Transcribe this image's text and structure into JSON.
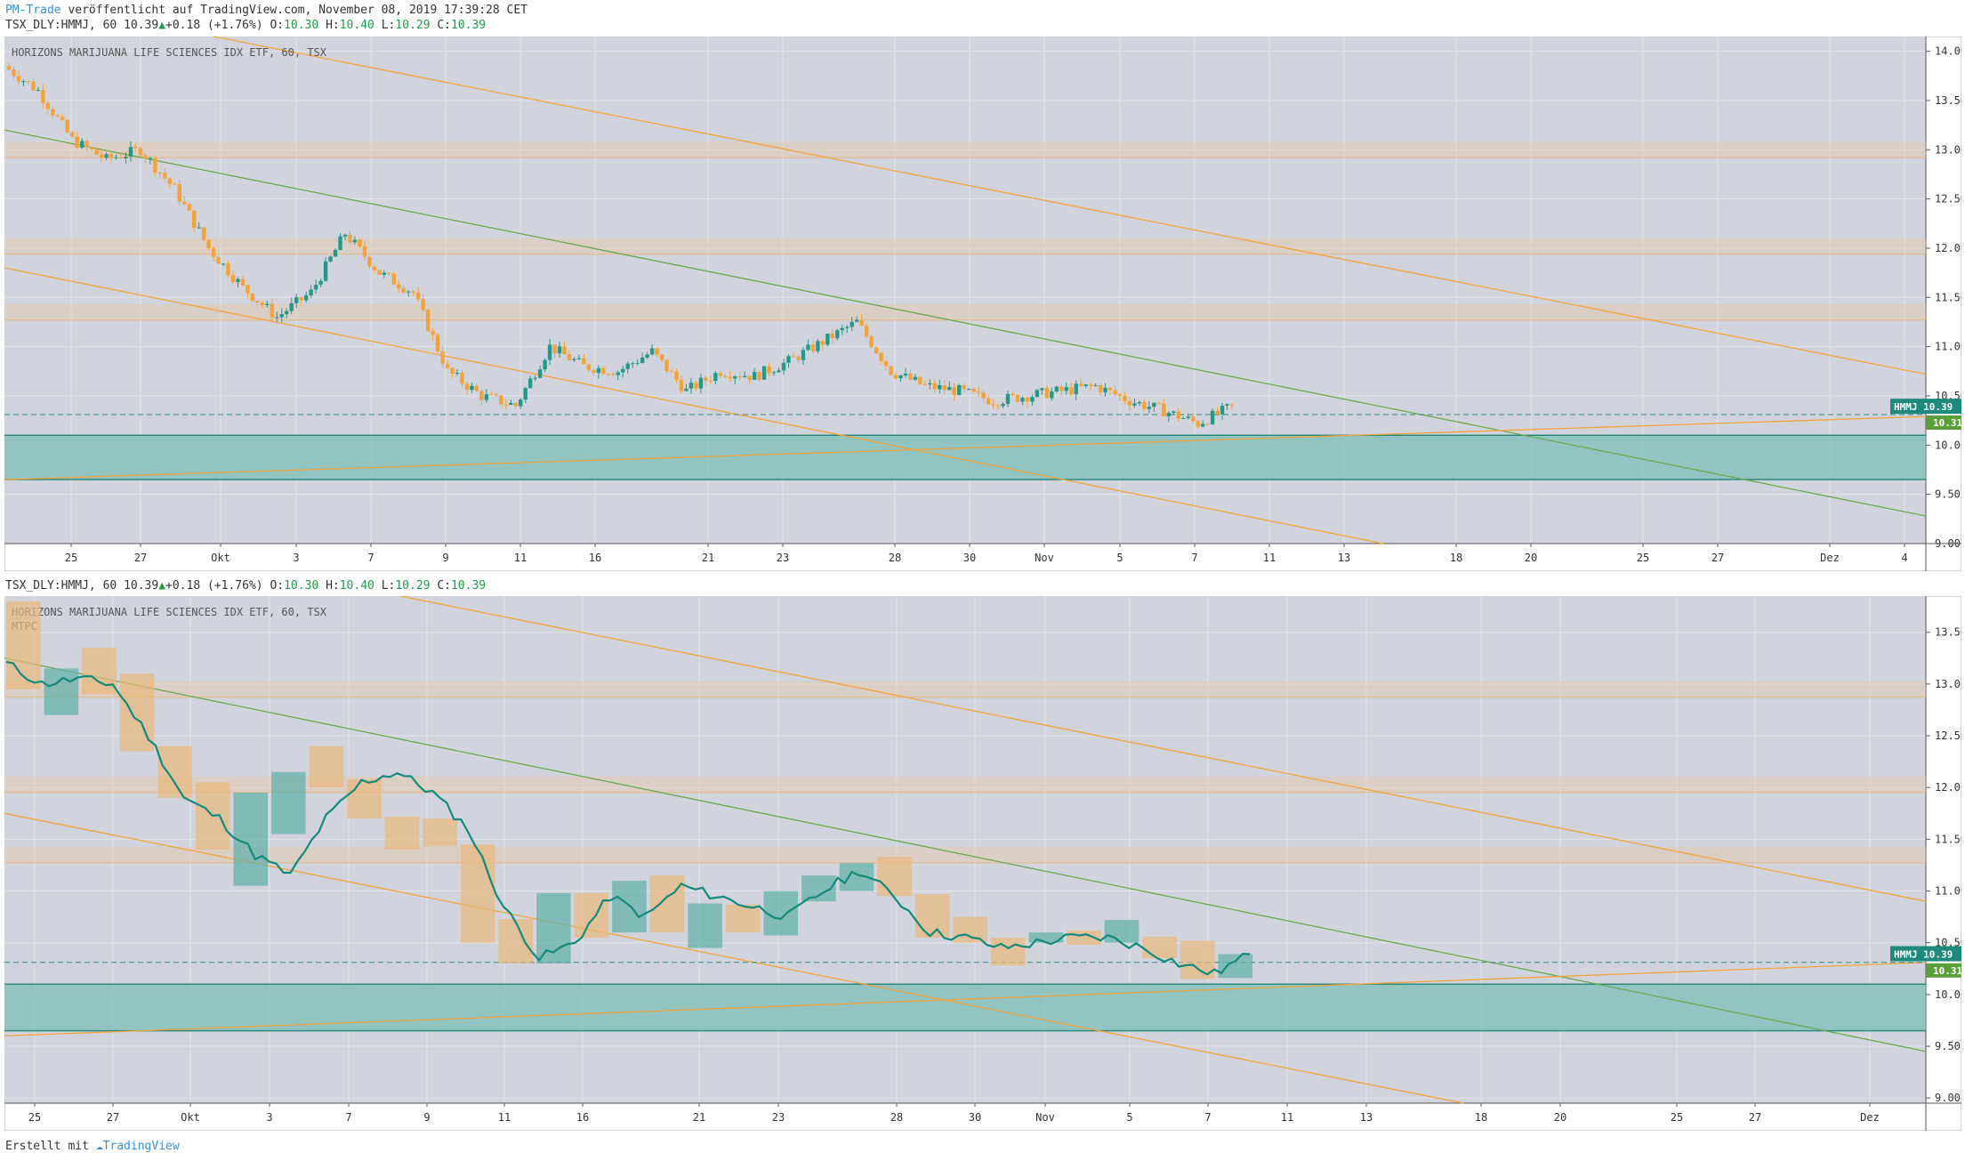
{
  "header": {
    "publisher": "PM-Trade",
    "published_text": "veröffentlicht auf TradingView.com, November 08, 2019 17:39:28 CET"
  },
  "ohlc_line": {
    "symbol": "TSX_DLY:HMMJ, 60",
    "last": "10.39",
    "change": "+0.18 (+1.76%)",
    "o_label": "O:",
    "o": "10.30",
    "h_label": "H:",
    "h": "10.40",
    "l_label": "L:",
    "l": "10.29",
    "c_label": "C:",
    "c": "10.39"
  },
  "panels": [
    {
      "title": "HORIZONS MARIJUANA LIFE SCIENCES IDX ETF, 60, TSX",
      "subtitle": ""
    },
    {
      "title": "HORIZONS MARIJUANA LIFE SCIENCES IDX ETF, 60, TSX",
      "subtitle": "MTPC"
    }
  ],
  "price_badge": {
    "ticker": "HMMJ",
    "price": "10.39",
    "level": "10.31"
  },
  "footer": {
    "created_with": "Erstellt mit",
    "brand": "TradingView"
  },
  "colors": {
    "background": "#d1d4dc",
    "up": "#26988a",
    "down": "#f2a33c",
    "channel": "#f2a33c",
    "trend": "#6aa84f",
    "zone": "#78bdb6",
    "band": "#e6c8a8"
  },
  "chart_data": [
    {
      "type": "candlestick",
      "title": "HORIZONS MARIJUANA LIFE SCIENCES IDX ETF, 60, TSX",
      "interval": "60",
      "ylim": [
        9.0,
        14.15
      ],
      "y_ticks": [
        "14.00",
        "13.50",
        "13.00",
        "12.50",
        "12.00",
        "11.50",
        "11.00",
        "10.50",
        "10.00",
        "9.50",
        "9.00"
      ],
      "x_ticks": [
        "25",
        "27",
        "Okt",
        "3",
        "7",
        "9",
        "11",
        "16",
        "21",
        "23",
        "28",
        "30",
        "Nov",
        "5",
        "7",
        "11",
        "13",
        "18",
        "20",
        "25",
        "27",
        "Dez",
        "4"
      ],
      "approx_close_path": [
        13.85,
        13.6,
        13.1,
        12.9,
        13.0,
        12.6,
        12.0,
        11.6,
        11.3,
        11.55,
        12.15,
        11.75,
        11.55,
        10.75,
        10.5,
        10.4,
        11.0,
        10.8,
        10.75,
        10.95,
        10.55,
        10.75,
        10.7,
        10.85,
        11.05,
        11.25,
        10.75,
        10.6,
        10.55,
        10.45,
        10.5,
        10.55,
        10.6,
        10.45,
        10.35,
        10.22,
        10.39
      ],
      "horizontal_bands": [
        13.0,
        12.02,
        11.35
      ],
      "support_zone": [
        9.65,
        10.1
      ],
      "last_price": 10.39,
      "dashed_level": 10.31,
      "grid": true
    },
    {
      "type": "line",
      "title": "HORIZONS MARIJUANA LIFE SCIENCES IDX ETF, 60, TSX",
      "subtitle": "MTPC",
      "ylim": [
        8.95,
        13.85
      ],
      "y_ticks": [
        "13.50",
        "13.00",
        "12.50",
        "12.00",
        "11.50",
        "11.00",
        "10.50",
        "10.00",
        "9.50",
        "9.00"
      ],
      "x_ticks": [
        "25",
        "27",
        "Okt",
        "3",
        "7",
        "9",
        "11",
        "16",
        "21",
        "23",
        "28",
        "30",
        "Nov",
        "5",
        "7",
        "11",
        "13",
        "18",
        "20",
        "25",
        "27",
        "Dez"
      ],
      "line_values": [
        13.2,
        13.0,
        13.05,
        13.0,
        12.5,
        11.9,
        11.7,
        11.35,
        11.15,
        11.7,
        12.05,
        12.15,
        11.95,
        11.6,
        10.85,
        10.35,
        10.5,
        10.95,
        10.75,
        11.05,
        10.95,
        10.85,
        10.75,
        11.0,
        11.2,
        10.95,
        10.6,
        10.55,
        10.45,
        10.5,
        10.55,
        10.55,
        10.45,
        10.3,
        10.2,
        10.39
      ],
      "daily_boxes": [
        {
          "open": 13.8,
          "close": 12.95
        },
        {
          "open": 12.7,
          "close": 13.15
        },
        {
          "open": 13.35,
          "close": 12.9
        },
        {
          "open": 13.1,
          "close": 12.35
        },
        {
          "open": 12.4,
          "close": 11.9
        },
        {
          "open": 12.05,
          "close": 11.4
        },
        {
          "open": 11.05,
          "close": 11.95
        },
        {
          "open": 11.55,
          "close": 12.15
        },
        {
          "open": 12.4,
          "close": 12.0
        },
        {
          "open": 12.08,
          "close": 11.7
        },
        {
          "open": 11.72,
          "close": 11.4
        },
        {
          "open": 11.7,
          "close": 11.43
        },
        {
          "open": 11.45,
          "close": 10.5
        },
        {
          "open": 10.73,
          "close": 10.3
        },
        {
          "open": 10.3,
          "close": 10.98
        },
        {
          "open": 10.98,
          "close": 10.55
        },
        {
          "open": 10.6,
          "close": 11.1
        },
        {
          "open": 11.15,
          "close": 10.6
        },
        {
          "open": 10.45,
          "close": 10.88
        },
        {
          "open": 10.87,
          "close": 10.6
        },
        {
          "open": 10.57,
          "close": 11.0
        },
        {
          "open": 10.9,
          "close": 11.15
        },
        {
          "open": 11.0,
          "close": 11.27
        },
        {
          "open": 11.33,
          "close": 10.95
        },
        {
          "open": 10.97,
          "close": 10.55
        },
        {
          "open": 10.75,
          "close": 10.5
        },
        {
          "open": 10.55,
          "close": 10.28
        },
        {
          "open": 10.5,
          "close": 10.6
        },
        {
          "open": 10.62,
          "close": 10.48
        },
        {
          "open": 10.5,
          "close": 10.72
        },
        {
          "open": 10.56,
          "close": 10.35
        },
        {
          "open": 10.52,
          "close": 10.15
        },
        {
          "open": 10.16,
          "close": 10.39
        }
      ],
      "horizontal_bands": [
        12.95,
        12.03,
        11.35
      ],
      "support_zone": [
        9.65,
        10.1
      ],
      "last_price": 10.39,
      "dashed_level": 10.31,
      "grid": true
    }
  ]
}
